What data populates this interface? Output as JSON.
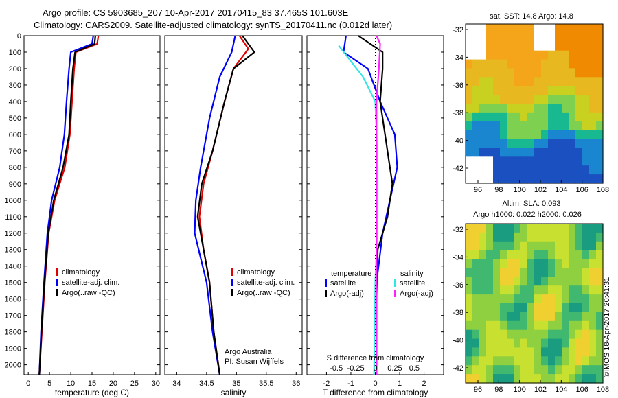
{
  "header": {
    "line1": "Argo profile: CS 5903685_207 10-Apr-2017 20170415_83 37.465S 101.603E",
    "line2": "Climatology: CARS2009. Satellite-adjusted climatology: synTS_20170411.nc (0.012d later)"
  },
  "stamp": "©IMOS 18-Apr-2017 20:41:31",
  "credit": {
    "line1": "Argo Australia",
    "line2": "PI: Susan Wijffels"
  },
  "colors": {
    "climatology": "#e00000",
    "satellite": "#0000ff",
    "argo": "#000000",
    "cyan": "#33e6e6",
    "magenta": "#ff22ff"
  },
  "depth_ticks": [
    0,
    100,
    200,
    300,
    400,
    500,
    600,
    700,
    800,
    900,
    1000,
    1100,
    1200,
    1300,
    1400,
    1500,
    1600,
    1700,
    1800,
    1900,
    2000
  ],
  "chart_data": [
    {
      "type": "line",
      "xlabel": "temperature (deg C)",
      "ylabel": "depth",
      "xlim": [
        -1,
        31
      ],
      "ylim": [
        2060,
        0
      ],
      "xticks": [
        "0",
        "5",
        "10",
        "15",
        "20",
        "25",
        "30"
      ],
      "legend": [
        "climatology",
        "satellite-adj. clim.",
        "Argo(..raw -QC)"
      ],
      "series": [
        {
          "name": "climatology",
          "color": "#e00000",
          "points": [
            [
              16.5,
              0
            ],
            [
              16.2,
              50
            ],
            [
              11.2,
              100
            ],
            [
              10.8,
              200
            ],
            [
              10.3,
              400
            ],
            [
              9.8,
              600
            ],
            [
              8.6,
              800
            ],
            [
              6.2,
              1000
            ],
            [
              4.8,
              1200
            ],
            [
              3.9,
              1500
            ],
            [
              3.2,
              1800
            ],
            [
              2.6,
              2060
            ]
          ]
        },
        {
          "name": "satellite-adj. clim.",
          "color": "#0000ff",
          "points": [
            [
              15.3,
              0
            ],
            [
              15.0,
              50
            ],
            [
              10.0,
              100
            ],
            [
              9.6,
              200
            ],
            [
              9.0,
              400
            ],
            [
              8.5,
              600
            ],
            [
              7.4,
              800
            ],
            [
              5.5,
              1000
            ],
            [
              4.5,
              1200
            ],
            [
              3.7,
              1500
            ],
            [
              3.0,
              1800
            ],
            [
              2.6,
              2060
            ]
          ]
        },
        {
          "name": "Argo(..raw -QC)",
          "color": "#000000",
          "points": [
            [
              15.8,
              0
            ],
            [
              15.6,
              50
            ],
            [
              11.0,
              100
            ],
            [
              10.5,
              200
            ],
            [
              10.0,
              400
            ],
            [
              9.6,
              600
            ],
            [
              8.2,
              800
            ],
            [
              6.0,
              1000
            ],
            [
              4.7,
              1200
            ],
            [
              3.8,
              1500
            ],
            [
              3.1,
              1800
            ],
            [
              2.6,
              2060
            ]
          ]
        }
      ]
    },
    {
      "type": "line",
      "xlabel": "salinity",
      "xlim": [
        33.8,
        36.1
      ],
      "ylim": [
        2060,
        0
      ],
      "xticks": [
        "34",
        "34.5",
        "35",
        "35.5",
        "36"
      ],
      "legend": [
        "climatology",
        "satellite-adj. clim.",
        "Argo(..raw -QC)"
      ],
      "series": [
        {
          "name": "climatology",
          "color": "#e00000",
          "points": [
            [
              35.05,
              0
            ],
            [
              35.2,
              80
            ],
            [
              34.95,
              200
            ],
            [
              34.8,
              400
            ],
            [
              34.6,
              700
            ],
            [
              34.45,
              900
            ],
            [
              34.38,
              1100
            ],
            [
              34.45,
              1300
            ],
            [
              34.55,
              1500
            ],
            [
              34.62,
              1800
            ],
            [
              34.72,
              2060
            ]
          ]
        },
        {
          "name": "satellite-adj. clim.",
          "color": "#0000ff",
          "points": [
            [
              34.98,
              0
            ],
            [
              34.95,
              50
            ],
            [
              34.92,
              100
            ],
            [
              34.72,
              250
            ],
            [
              34.55,
              500
            ],
            [
              34.4,
              800
            ],
            [
              34.32,
              1000
            ],
            [
              34.3,
              1200
            ],
            [
              34.5,
              1500
            ],
            [
              34.6,
              1800
            ],
            [
              34.72,
              2060
            ]
          ]
        },
        {
          "name": "Argo(..raw -QC)",
          "color": "#000000",
          "points": [
            [
              35.1,
              0
            ],
            [
              35.3,
              100
            ],
            [
              34.95,
              200
            ],
            [
              34.8,
              400
            ],
            [
              34.6,
              700
            ],
            [
              34.42,
              900
            ],
            [
              34.35,
              1100
            ],
            [
              34.45,
              1300
            ],
            [
              34.55,
              1500
            ],
            [
              34.62,
              1800
            ],
            [
              34.72,
              2060
            ]
          ]
        }
      ]
    },
    {
      "type": "line",
      "xlabel": "T difference from climatology",
      "toplabel": "S difference from climatology",
      "xlim": [
        -2.8,
        2.8
      ],
      "ylim": [
        2060,
        0
      ],
      "xticks": [
        "-2",
        "-1",
        "0",
        "1",
        "2"
      ],
      "top_xticks": [
        "-0.5",
        "-0.25",
        "0",
        "0.25",
        "0.5"
      ],
      "legend_title_left": "temperature",
      "legend_title_right": "salinity",
      "legend_left": [
        "satellite",
        "Argo(-adj)"
      ],
      "legend_right": [
        "satellite",
        "Argo(-adj)"
      ],
      "series": [
        {
          "name": "temperature satellite",
          "color": "#0000ff",
          "points": [
            [
              -1.2,
              0
            ],
            [
              -1.3,
              100
            ],
            [
              -0.3,
              200
            ],
            [
              0.2,
              400
            ],
            [
              0.8,
              600
            ],
            [
              0.9,
              800
            ],
            [
              0.6,
              1000
            ],
            [
              0.3,
              1200
            ],
            [
              0.05,
              1500
            ],
            [
              0.05,
              2060
            ]
          ]
        },
        {
          "name": "temperature Argo(-adj)",
          "color": "#000000",
          "points": [
            [
              -0.7,
              0
            ],
            [
              0.3,
              100
            ],
            [
              0.3,
              200
            ],
            [
              0.2,
              400
            ],
            [
              0.4,
              600
            ],
            [
              0.6,
              800
            ],
            [
              0.7,
              900
            ],
            [
              0.5,
              1100
            ],
            [
              0.1,
              1300
            ],
            [
              0.05,
              1600
            ],
            [
              0.05,
              2060
            ]
          ]
        },
        {
          "name": "salinity satellite",
          "color": "#33e6e6",
          "points": [
            [
              -1.5,
              60
            ],
            [
              -0.5,
              250
            ],
            [
              0,
              400
            ],
            [
              0.1,
              800
            ],
            [
              0.1,
              1100
            ],
            [
              0,
              1500
            ],
            [
              -0.05,
              2060
            ]
          ]
        },
        {
          "name": "salinity Argo(-adj)",
          "color": "#ff22ff",
          "points": [
            [
              0.05,
              0
            ],
            [
              0.2,
              50
            ],
            [
              0.15,
              200
            ],
            [
              0.05,
              400
            ],
            [
              0.05,
              800
            ],
            [
              0.05,
              2060
            ]
          ]
        }
      ]
    },
    {
      "type": "heatmap",
      "title": "sat. SST: 14.8  Argo: 14.8",
      "xticks": [
        "96",
        "98",
        "100",
        "102",
        "104",
        "106",
        "108"
      ],
      "yticks": [
        "-32",
        "-34",
        "-36",
        "-38",
        "-40",
        "-42"
      ]
    },
    {
      "type": "heatmap",
      "title_line1": "Altim. SLA: 0.093",
      "title_line2": "Argo h1000: 0.022  h2000: 0.026",
      "xticks": [
        "96",
        "98",
        "100",
        "102",
        "104",
        "106",
        "108"
      ],
      "yticks": [
        "-32",
        "-34",
        "-36",
        "-38",
        "-40",
        "-42"
      ]
    }
  ]
}
